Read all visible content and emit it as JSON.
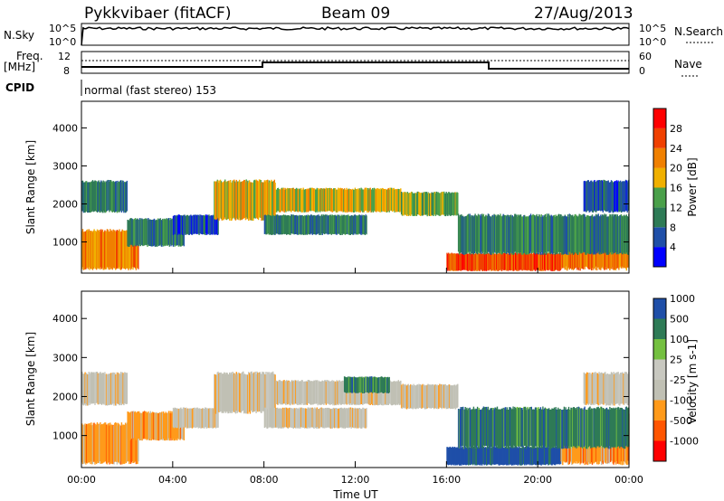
{
  "header": {
    "title": "Pykkvibaer (fitACF)",
    "beam": "Beam 09",
    "date": "27/Aug/2013"
  },
  "nsky": {
    "label": "N.Sky",
    "right_label": "N.Search",
    "ticks": [
      "10^5",
      "10^0"
    ],
    "right_ticks": [
      "10^5",
      "10^0"
    ]
  },
  "freq": {
    "label_line1": "Freq.",
    "label_line2": "[MHz]",
    "ticks": [
      "12",
      "8"
    ],
    "right_label": "Nave",
    "right_ticks": [
      "60",
      "0"
    ]
  },
  "cpid": {
    "label": "CPID",
    "text": "normal (fast stereo) 153"
  },
  "colors": {
    "power": [
      "#0000ff",
      "#1f4fa8",
      "#2e7b56",
      "#4aa04a",
      "#f0b000",
      "#f08000",
      "#f04000",
      "#ff0000"
    ],
    "velocity": [
      "#ff0000",
      "#ff5500",
      "#ff9a1a",
      "#c0c0b4",
      "#c8c8c0",
      "#74c040",
      "#2e7b56",
      "#1f4fa8"
    ],
    "ground_scatter": "#c0c0b8"
  },
  "chart_data": [
    {
      "type": "heatmap",
      "name": "power-panel",
      "ylabel": "Slant Range [km]",
      "yticks": [
        1000,
        2000,
        3000,
        4000
      ],
      "ylim": [
        180,
        4700
      ],
      "xlabel": "",
      "xlim": [
        0,
        24
      ],
      "colorbar_label": "Power [dB]",
      "colorbar_ticks": [
        "4",
        "8",
        "12",
        "16",
        "20",
        "24",
        "28"
      ],
      "bands": [
        {
          "t0": 0.0,
          "t1": 2.5,
          "r0": 300,
          "r1": 1300,
          "value": 24
        },
        {
          "t0": 0.0,
          "t1": 2.0,
          "r0": 1800,
          "r1": 2600,
          "value": 12
        },
        {
          "t0": 2.0,
          "t1": 4.5,
          "r0": 900,
          "r1": 1600,
          "value": 10
        },
        {
          "t0": 4.0,
          "t1": 6.0,
          "r0": 1200,
          "r1": 1700,
          "value": 8
        },
        {
          "t0": 5.8,
          "t1": 8.5,
          "r0": 1600,
          "r1": 2600,
          "value": 20
        },
        {
          "t0": 8.5,
          "t1": 14.0,
          "r0": 1800,
          "r1": 2400,
          "value": 20
        },
        {
          "t0": 8.0,
          "t1": 12.5,
          "r0": 1200,
          "r1": 1700,
          "value": 10
        },
        {
          "t0": 14.0,
          "t1": 16.5,
          "r0": 1700,
          "r1": 2300,
          "value": 14
        },
        {
          "t0": 16.0,
          "t1": 21.0,
          "r0": 250,
          "r1": 700,
          "value": 28
        },
        {
          "t0": 21.0,
          "t1": 24.0,
          "r0": 300,
          "r1": 1600,
          "value": 22
        },
        {
          "t0": 16.5,
          "t1": 24.0,
          "r0": 700,
          "r1": 1700,
          "value": 10
        },
        {
          "t0": 22.0,
          "t1": 24.0,
          "r0": 1800,
          "r1": 2600,
          "value": 8
        }
      ]
    },
    {
      "type": "heatmap",
      "name": "velocity-panel",
      "ylabel": "Slant Range [km]",
      "yticks": [
        1000,
        2000,
        3000,
        4000
      ],
      "ylim": [
        180,
        4700
      ],
      "xlabel": "Time UT",
      "xlim": [
        0,
        24
      ],
      "xticks": [
        "00:00",
        "04:00",
        "08:00",
        "12:00",
        "16:00",
        "20:00",
        "00:00"
      ],
      "colorbar_label": "Velocity [m s-1]",
      "colorbar_ticks": [
        "-1000",
        "-500",
        "-100",
        "-25",
        "25",
        "100",
        "500",
        "1000"
      ],
      "bands": [
        {
          "t0": 0.0,
          "t1": 2.5,
          "r0": 300,
          "r1": 1300,
          "value": -300
        },
        {
          "t0": 0.0,
          "t1": 2.0,
          "r0": 1800,
          "r1": 2600,
          "value": 0
        },
        {
          "t0": 2.0,
          "t1": 4.5,
          "r0": 900,
          "r1": 1600,
          "value": -150
        },
        {
          "t0": 4.0,
          "t1": 6.0,
          "r0": 1200,
          "r1": 1700,
          "value": 0
        },
        {
          "t0": 5.8,
          "t1": 8.5,
          "r0": 1600,
          "r1": 2600,
          "value": 0
        },
        {
          "t0": 8.5,
          "t1": 14.0,
          "r0": 1800,
          "r1": 2400,
          "value": 0
        },
        {
          "t0": 8.0,
          "t1": 12.5,
          "r0": 1200,
          "r1": 1700,
          "value": 0
        },
        {
          "t0": 11.5,
          "t1": 13.5,
          "r0": 2100,
          "r1": 2500,
          "value": 300
        },
        {
          "t0": 14.0,
          "t1": 16.5,
          "r0": 1700,
          "r1": 2300,
          "value": 0
        },
        {
          "t0": 16.0,
          "t1": 21.0,
          "r0": 250,
          "r1": 700,
          "value": 600
        },
        {
          "t0": 21.0,
          "t1": 24.0,
          "r0": 300,
          "r1": 1600,
          "value": -200
        },
        {
          "t0": 16.5,
          "t1": 24.0,
          "r0": 700,
          "r1": 1700,
          "value": 150
        },
        {
          "t0": 22.0,
          "t1": 24.0,
          "r0": 1800,
          "r1": 2600,
          "value": 0
        }
      ]
    }
  ]
}
